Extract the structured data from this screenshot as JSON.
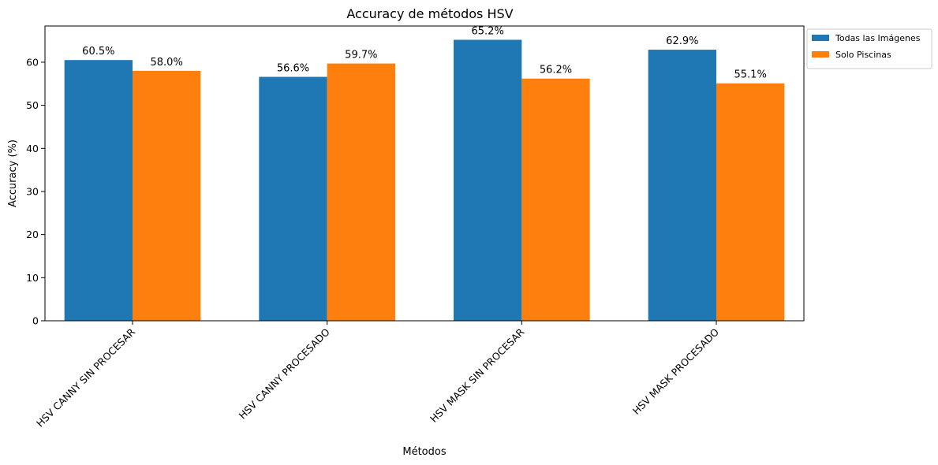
{
  "chart_data": {
    "type": "bar",
    "title": "Accuracy de métodos HSV",
    "xlabel": "Métodos",
    "ylabel": "Accuracy (%)",
    "categories": [
      "HSV CANNY SIN PROCESAR",
      "HSV CANNY PROCESADO",
      "HSV MASK SIN PROCESAR",
      "HSV MASK PROCESADO"
    ],
    "series": [
      {
        "name": "Todas las Imágenes",
        "values": [
          60.5,
          56.6,
          65.2,
          62.9
        ],
        "labels": [
          "60.5%",
          "56.6%",
          "65.2%",
          "62.9%"
        ],
        "color": "#1f77b4"
      },
      {
        "name": "Solo Piscinas",
        "values": [
          58.0,
          59.7,
          56.2,
          55.1
        ],
        "labels": [
          "58.0%",
          "59.7%",
          "56.2%",
          "55.1%"
        ],
        "color": "#ff7f0e"
      }
    ],
    "ylim": [
      0,
      68.4
    ],
    "yticks": [
      "0",
      "10",
      "20",
      "30",
      "40",
      "50",
      "60"
    ],
    "grid": false,
    "legend_position": "outside-top-right"
  }
}
